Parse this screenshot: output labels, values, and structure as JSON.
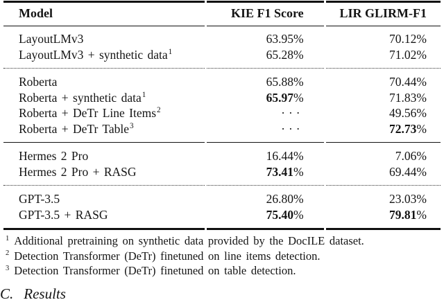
{
  "table": {
    "header": {
      "model": "Model",
      "kie": "KIE F1 Score",
      "lir": "LIR GLIRM-F1"
    },
    "groups": [
      {
        "rows": [
          {
            "model": "LayoutLMv3",
            "sup": "",
            "kie": "63.95%",
            "kie_bold": false,
            "lir": "70.12%",
            "lir_bold": false
          },
          {
            "model": "LayoutLMv3 + synthetic data",
            "sup": "1",
            "kie": "65.28%",
            "kie_bold": false,
            "lir": "71.02%",
            "lir_bold": false
          }
        ],
        "divider_after": "dotted"
      },
      {
        "rows": [
          {
            "model": "Roberta",
            "sup": "",
            "kie": "65.88%",
            "kie_bold": false,
            "lir": "70.44%",
            "lir_bold": false
          },
          {
            "model": "Roberta + synthetic data",
            "sup": "1",
            "kie": "65.97%",
            "kie_bold": true,
            "lir": "71.83%",
            "lir_bold": false
          },
          {
            "model": "Roberta + DeTr Line Items",
            "sup": "2",
            "kie": "···",
            "kie_bold": false,
            "lir": "49.56%",
            "lir_bold": false
          },
          {
            "model": "Roberta + DeTr Table",
            "sup": "3",
            "kie": "···",
            "kie_bold": false,
            "lir": "72.73%",
            "lir_bold": true
          }
        ],
        "divider_after": "solid"
      },
      {
        "rows": [
          {
            "model": "Hermes 2 Pro",
            "sup": "",
            "kie": "16.44%",
            "kie_bold": false,
            "lir": "7.06%",
            "lir_bold": false
          },
          {
            "model": "Hermes 2 Pro + RASG",
            "sup": "",
            "kie": "73.41%",
            "kie_bold": true,
            "lir": "69.44%",
            "lir_bold": false
          }
        ],
        "divider_after": "dotted"
      },
      {
        "rows": [
          {
            "model": "GPT-3.5",
            "sup": "",
            "kie": "26.80%",
            "kie_bold": false,
            "lir": "23.03%",
            "lir_bold": false
          },
          {
            "model": "GPT-3.5 + RASG",
            "sup": "",
            "kie": "75.40%",
            "kie_bold": true,
            "lir": "79.81%",
            "lir_bold": true
          }
        ],
        "divider_after": "none"
      }
    ]
  },
  "footnotes": [
    {
      "sup": "1",
      "text": "Additional pretraining on synthetic data provided by the DocILE dataset."
    },
    {
      "sup": "2",
      "text": "Detection Transformer (DeTr) finetuned on line items detection."
    },
    {
      "sup": "3",
      "text": "Detection Transformer (DeTr) finetuned on table detection."
    }
  ],
  "section_heading": {
    "number": "C.",
    "title": "Results"
  },
  "colors": {
    "text": "#141414",
    "rule": "#101010",
    "background": "#ffffff"
  }
}
